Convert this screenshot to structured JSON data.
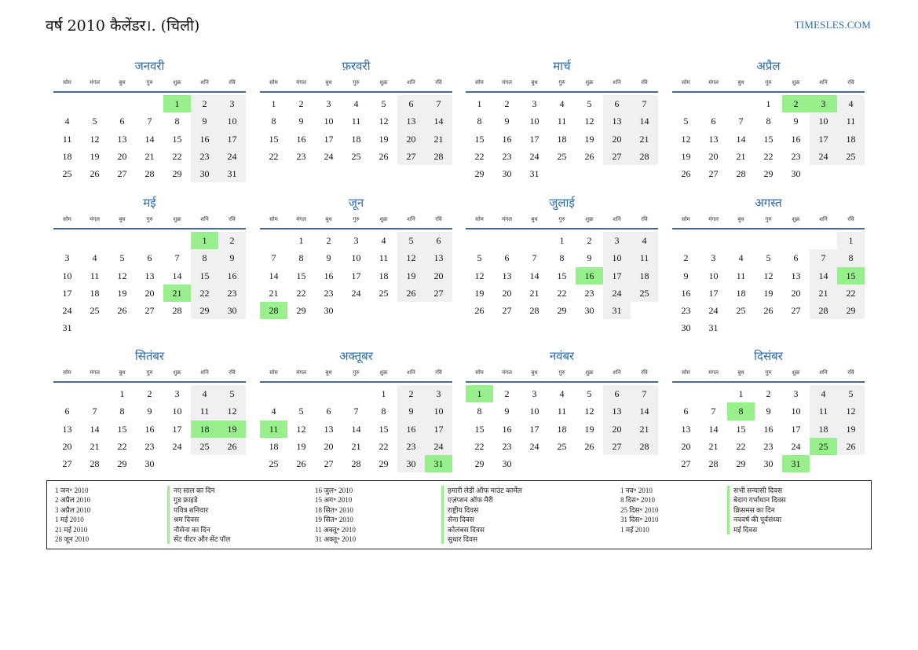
{
  "header": {
    "title": "वर्ष 2010 कैलेंडर।. (चिली)",
    "site": "TIMESLES.COM"
  },
  "weekdays": [
    "सोम",
    "मंगल",
    "बुध",
    "गुरु",
    "शुक्र",
    "शनि",
    "रवि"
  ],
  "colors": {
    "accent": "#2a6cae",
    "holiday": "#98f08c",
    "weekend": "#f0f0f0"
  },
  "months": [
    {
      "name": "जनवरी",
      "offset": 4,
      "days": 31,
      "holidays": [
        1
      ]
    },
    {
      "name": "फ़रवरी",
      "offset": 0,
      "days": 28,
      "holidays": []
    },
    {
      "name": "मार्च",
      "offset": 0,
      "days": 31,
      "holidays": []
    },
    {
      "name": "अप्रैल",
      "offset": 3,
      "days": 30,
      "holidays": [
        2,
        3
      ]
    },
    {
      "name": "मई",
      "offset": 5,
      "days": 31,
      "holidays": [
        1,
        21
      ]
    },
    {
      "name": "जून",
      "offset": 1,
      "days": 30,
      "holidays": [
        28
      ]
    },
    {
      "name": "जुलाई",
      "offset": 3,
      "days": 31,
      "holidays": [
        16
      ]
    },
    {
      "name": "अगस्त",
      "offset": 6,
      "days": 31,
      "holidays": [
        15
      ]
    },
    {
      "name": "सितंबर",
      "offset": 2,
      "days": 30,
      "holidays": [
        18,
        19
      ]
    },
    {
      "name": "अक्तूबर",
      "offset": 4,
      "days": 31,
      "holidays": [
        11,
        31
      ]
    },
    {
      "name": "नवंबर",
      "offset": 0,
      "days": 30,
      "holidays": [
        1
      ]
    },
    {
      "name": "दिसंबर",
      "offset": 2,
      "days": 31,
      "holidays": [
        8,
        25,
        31
      ]
    }
  ],
  "legend": {
    "dates_1": [
      "1 जन॰ 2010",
      "2 अप्रैल 2010",
      "3 अप्रैल 2010",
      "1 मई 2010",
      "21 मई 2010",
      "28 जून 2010"
    ],
    "names_1": [
      "नए साल का दिन",
      "गुड फ्राइडे",
      "पवित्र शनिवार",
      "श्रम दिवस",
      "नौसेना का दिन",
      "सेंट पीटर और सेंट पॉल"
    ],
    "dates_2": [
      "16 जुल॰ 2010",
      "15 अग॰ 2010",
      "18 सित॰ 2010",
      "19 सित॰ 2010",
      "11 अक्तू॰ 2010",
      "31 अक्तू॰ 2010"
    ],
    "names_2": [
      "हमारी लेडी ऑफ माउंट कार्मेल",
      "एज़ंप्शन ऑफ मैरी",
      "राष्ट्रीय दिवस",
      "सेना दिवस",
      "कोलंबस दिवस",
      "सुधार दिवस"
    ],
    "dates_3": [
      "1 नव॰ 2010",
      "8 दिस॰ 2010",
      "25 दिस॰ 2010",
      "31 दिस॰ 2010",
      "1 मई 2010"
    ],
    "names_3": [
      "सभी सन्यासी दिवस",
      "बेदाग गर्भाधान दिवस",
      "क्रिसमस का दिन",
      "नववर्ष की पूर्वसंध्या",
      "मई दिवस"
    ]
  }
}
